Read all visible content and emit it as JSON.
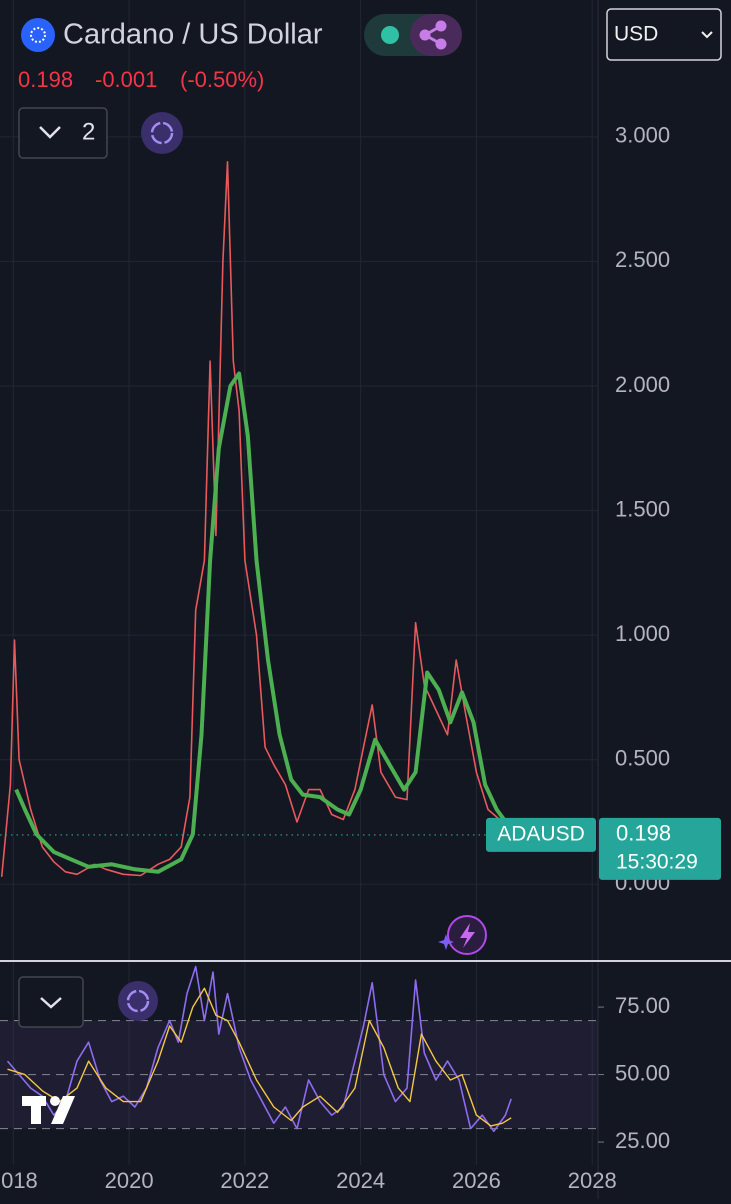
{
  "header": {
    "title": "Cardano / US Dollar",
    "change": "-0.001",
    "change_pct": "(-0.50%)",
    "indicator_count": "2",
    "currency": "USD"
  },
  "chart_data": [
    {
      "type": "line",
      "last_price": 0.198,
      "last_label": "ADAUSD",
      "countdown": "15:30:29",
      "xlim": [
        2017.77,
        2028.1
      ],
      "ylim": [
        -0.304,
        3.148
      ],
      "yticks": [
        {
          "value": 0,
          "label": "0.000"
        },
        {
          "value": 0.5,
          "label": "0.500"
        },
        {
          "value": 1,
          "label": "1.000"
        },
        {
          "value": 1.5,
          "label": "1.500"
        },
        {
          "value": 2,
          "label": "2.000"
        },
        {
          "value": 2.5,
          "label": "2.500"
        },
        {
          "value": 3,
          "label": "3.000"
        }
      ],
      "grid": true,
      "series": [
        {
          "color": "#e8595c",
          "x": [
            2017.8,
            2017.95,
            2018.02,
            2018.1,
            2018.3,
            2018.5,
            2018.7,
            2018.9,
            2019.1,
            2019.4,
            2019.6,
            2019.9,
            2020.2,
            2020.5,
            2020.7,
            2020.9,
            2021.05,
            2021.15,
            2021.3,
            2021.4,
            2021.5,
            2021.62,
            2021.7,
            2021.8,
            2021.9,
            2022.0,
            2022.2,
            2022.35,
            2022.5,
            2022.7,
            2022.9,
            2023.1,
            2023.3,
            2023.5,
            2023.7,
            2023.9,
            2024.05,
            2024.2,
            2024.35,
            2024.6,
            2024.8,
            2024.95,
            2025.1,
            2025.3,
            2025.5,
            2025.65,
            2025.8,
            2026.0,
            2026.2,
            2026.4,
            2026.6
          ],
          "values": [
            0.03,
            0.4,
            0.98,
            0.5,
            0.3,
            0.15,
            0.09,
            0.05,
            0.04,
            0.08,
            0.06,
            0.04,
            0.035,
            0.08,
            0.1,
            0.15,
            0.35,
            1.1,
            1.3,
            2.1,
            1.4,
            2.5,
            2.9,
            2.1,
            1.9,
            1.3,
            1.0,
            0.55,
            0.48,
            0.4,
            0.25,
            0.38,
            0.38,
            0.28,
            0.26,
            0.38,
            0.55,
            0.72,
            0.45,
            0.35,
            0.34,
            1.05,
            0.8,
            0.7,
            0.6,
            0.9,
            0.7,
            0.45,
            0.3,
            0.26,
            0.198
          ]
        },
        {
          "color": "#4caf50",
          "x": [
            2018.05,
            2018.2,
            2018.4,
            2018.7,
            2019.0,
            2019.3,
            2019.7,
            2020.1,
            2020.5,
            2020.9,
            2021.1,
            2021.25,
            2021.4,
            2021.55,
            2021.75,
            2021.9,
            2022.05,
            2022.2,
            2022.4,
            2022.6,
            2022.8,
            2023.0,
            2023.3,
            2023.6,
            2023.8,
            2024.0,
            2024.25,
            2024.5,
            2024.75,
            2024.95,
            2025.15,
            2025.35,
            2025.55,
            2025.75,
            2025.95,
            2026.15,
            2026.35,
            2026.6
          ],
          "values": [
            0.38,
            0.3,
            0.2,
            0.13,
            0.1,
            0.07,
            0.08,
            0.06,
            0.05,
            0.1,
            0.2,
            0.6,
            1.3,
            1.75,
            2.0,
            2.05,
            1.8,
            1.3,
            0.9,
            0.6,
            0.42,
            0.36,
            0.35,
            0.3,
            0.28,
            0.38,
            0.58,
            0.48,
            0.38,
            0.45,
            0.85,
            0.78,
            0.65,
            0.77,
            0.65,
            0.4,
            0.3,
            0.22
          ]
        }
      ]
    },
    {
      "type": "line",
      "xlim": [
        2017.77,
        2028.1
      ],
      "ylim": [
        16.5,
        91.7
      ],
      "xticks": [
        2018,
        2020,
        2022,
        2024,
        2026,
        2028
      ],
      "yticks": [
        {
          "value": 25,
          "label": "25.00"
        },
        {
          "value": 50,
          "label": "50.00"
        },
        {
          "value": 75,
          "label": "75.00"
        }
      ],
      "reference_lines": [
        70,
        50,
        30
      ],
      "series": [
        {
          "color": "#8e6cf0",
          "x": [
            2017.9,
            2018.1,
            2018.3,
            2018.5,
            2018.7,
            2018.9,
            2019.1,
            2019.3,
            2019.5,
            2019.7,
            2019.9,
            2020.1,
            2020.3,
            2020.5,
            2020.7,
            2020.85,
            2021.0,
            2021.15,
            2021.3,
            2021.45,
            2021.55,
            2021.7,
            2021.9,
            2022.1,
            2022.3,
            2022.5,
            2022.7,
            2022.9,
            2023.1,
            2023.3,
            2023.5,
            2023.7,
            2023.9,
            2024.05,
            2024.2,
            2024.4,
            2024.6,
            2024.8,
            2024.95,
            2025.1,
            2025.3,
            2025.5,
            2025.7,
            2025.9,
            2026.1,
            2026.3,
            2026.5,
            2026.6
          ],
          "values": [
            55,
            50,
            45,
            42,
            35,
            40,
            55,
            62,
            48,
            40,
            42,
            38,
            45,
            60,
            70,
            62,
            80,
            90,
            70,
            88,
            65,
            80,
            60,
            48,
            40,
            32,
            38,
            30,
            48,
            40,
            35,
            38,
            55,
            68,
            84,
            50,
            40,
            45,
            85,
            58,
            48,
            55,
            48,
            30,
            35,
            29,
            35,
            41
          ]
        },
        {
          "color": "#f5c842",
          "x": [
            2017.9,
            2018.2,
            2018.5,
            2018.8,
            2019.1,
            2019.3,
            2019.6,
            2019.9,
            2020.2,
            2020.5,
            2020.7,
            2020.9,
            2021.1,
            2021.3,
            2021.5,
            2021.7,
            2021.9,
            2022.2,
            2022.5,
            2022.8,
            2023.0,
            2023.3,
            2023.6,
            2023.9,
            2024.15,
            2024.4,
            2024.65,
            2024.85,
            2025.05,
            2025.3,
            2025.55,
            2025.75,
            2026.0,
            2026.25,
            2026.45,
            2026.6
          ],
          "values": [
            52,
            50,
            44,
            40,
            45,
            55,
            45,
            40,
            40,
            55,
            68,
            62,
            75,
            82,
            72,
            70,
            62,
            48,
            38,
            33,
            38,
            42,
            36,
            45,
            70,
            60,
            45,
            40,
            65,
            55,
            48,
            50,
            35,
            31,
            32,
            34
          ]
        }
      ]
    }
  ]
}
